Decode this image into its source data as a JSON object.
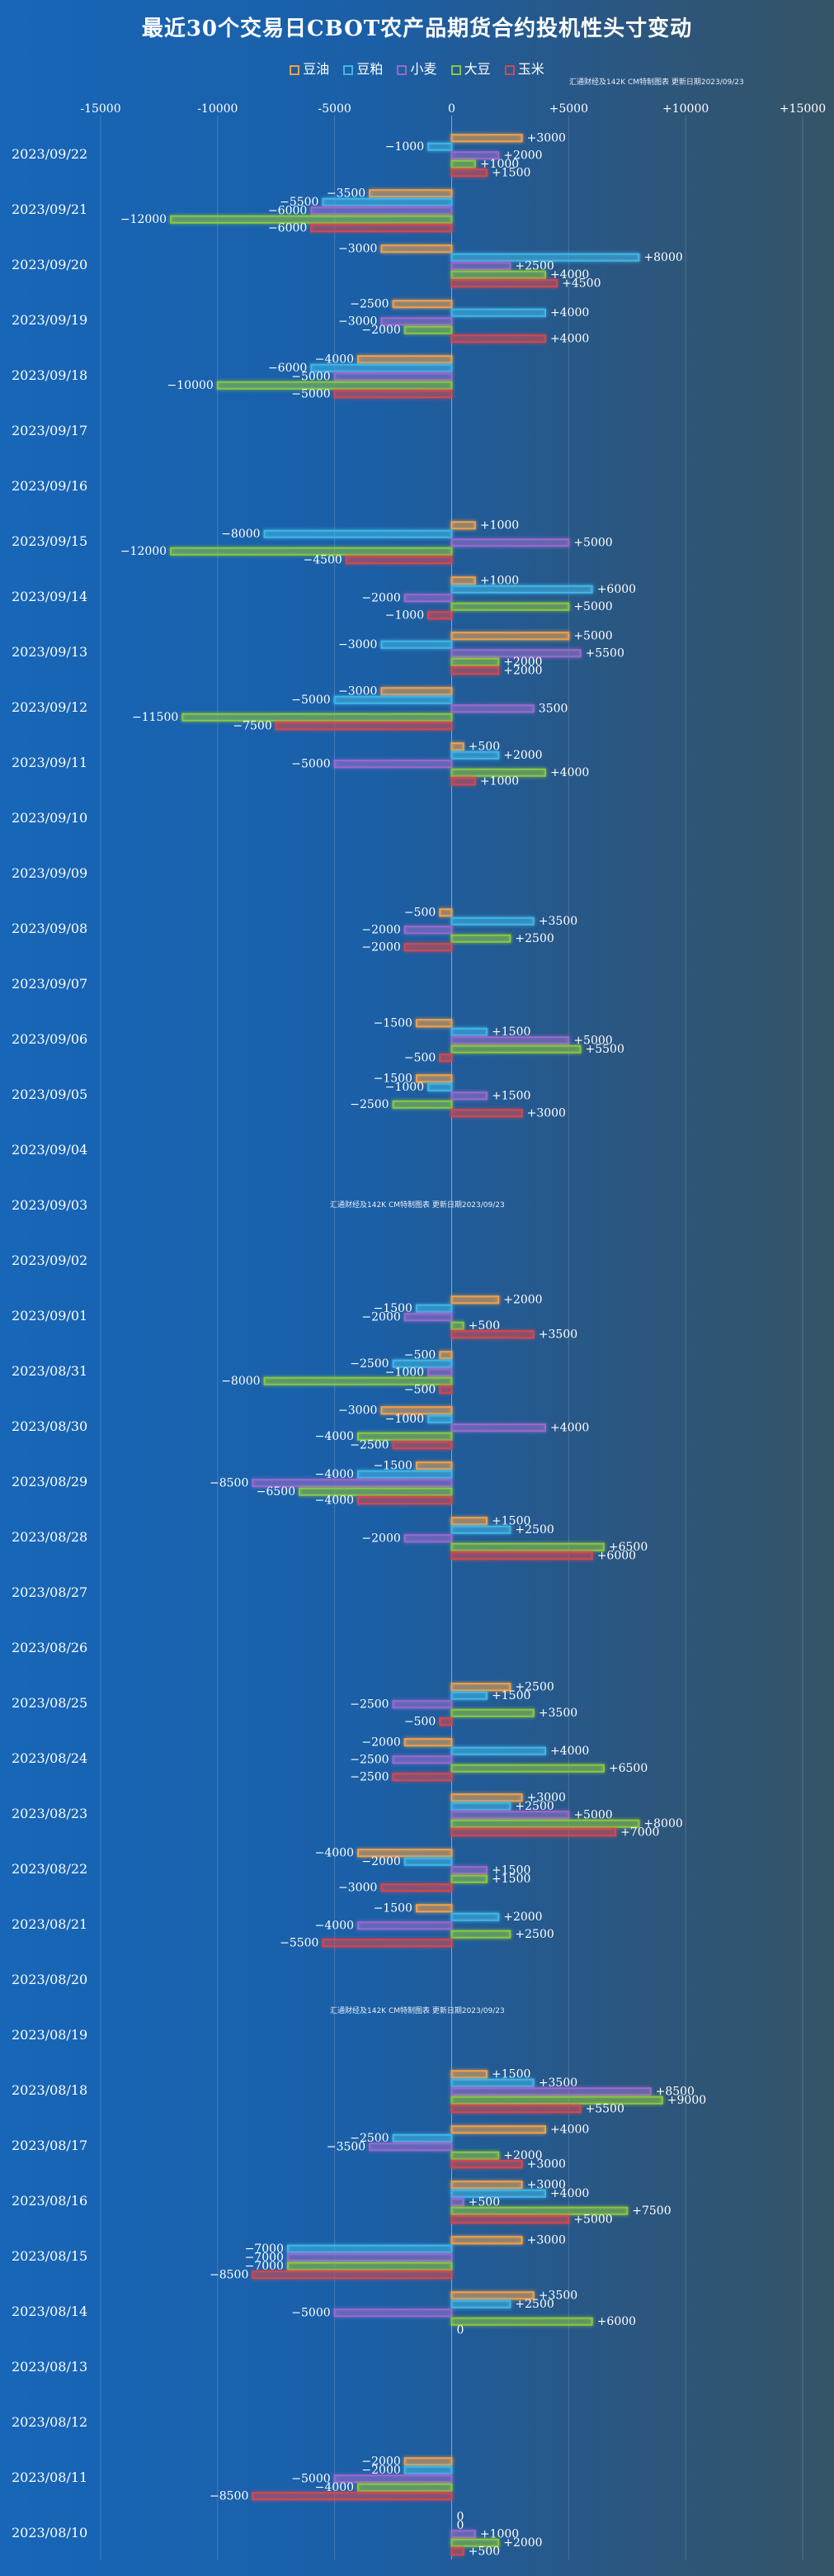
{
  "chart_data": {
    "type": "bar",
    "orientation": "horizontal",
    "title": "最近30个交易日CBOT农产品期货合约投机性头寸变动",
    "source_note": "汇通财经及142K CM特制图表 更新日期2023/09/23",
    "xlim": [
      -15000,
      15000
    ],
    "xticks": [
      "-15000",
      "-10000",
      "-5000",
      "0",
      "+5000",
      "+10000",
      "+15000"
    ],
    "xtick_values": [
      -15000,
      -10000,
      -5000,
      0,
      5000,
      10000,
      15000
    ],
    "categories": [
      "2023/09/22",
      "2023/09/21",
      "2023/09/20",
      "2023/09/19",
      "2023/09/18",
      "2023/09/17",
      "2023/09/16",
      "2023/09/15",
      "2023/09/14",
      "2023/09/13",
      "2023/09/12",
      "2023/09/11",
      "2023/09/10",
      "2023/09/09",
      "2023/09/08",
      "2023/09/07",
      "2023/09/06",
      "2023/09/05",
      "2023/09/04",
      "2023/09/03",
      "2023/09/02",
      "2023/09/01",
      "2023/08/31",
      "2023/08/30",
      "2023/08/29",
      "2023/08/28",
      "2023/08/27",
      "2023/08/26",
      "2023/08/25",
      "2023/08/24",
      "2023/08/23",
      "2023/08/22",
      "2023/08/21",
      "2023/08/20",
      "2023/08/19",
      "2023/08/18",
      "2023/08/17",
      "2023/08/16",
      "2023/08/15",
      "2023/08/14",
      "2023/08/13",
      "2023/08/12",
      "2023/08/11",
      "2023/08/10"
    ],
    "series": [
      {
        "name": "豆油",
        "color": "#f0a04b",
        "values": [
          3000,
          -3500,
          -3000,
          -2500,
          -4000,
          null,
          null,
          1000,
          1000,
          5000,
          -3000,
          500,
          null,
          null,
          -500,
          null,
          -1500,
          -1500,
          null,
          null,
          null,
          2000,
          -500,
          -3000,
          -1500,
          1500,
          null,
          null,
          2500,
          -2000,
          3000,
          -4000,
          -1500,
          null,
          null,
          1500,
          4000,
          3000,
          3000,
          3500,
          null,
          null,
          -2000,
          0
        ],
        "labels": [
          "+3000",
          "−3500",
          "−3000",
          "−2500",
          "−4000",
          null,
          null,
          "+1000",
          "+1000",
          "+5000",
          "−3000",
          "+500",
          null,
          null,
          "−500",
          null,
          "−1500",
          "−1500",
          null,
          null,
          null,
          "+2000",
          "−500",
          "−3000",
          "−1500",
          "+1500",
          null,
          null,
          "+2500",
          "−2000",
          "+3000",
          "−4000",
          "−1500",
          null,
          null,
          "+1500",
          "+4000",
          "+3000",
          "+3000",
          "+3500",
          null,
          null,
          "−2000",
          "0"
        ]
      },
      {
        "name": "豆粕",
        "color": "#3fb6e6",
        "values": [
          -1000,
          -5500,
          8000,
          4000,
          -6000,
          null,
          null,
          -8000,
          6000,
          -3000,
          -5000,
          2000,
          null,
          null,
          3500,
          null,
          1500,
          -1000,
          null,
          null,
          null,
          -1500,
          -2500,
          -1000,
          -4000,
          2500,
          null,
          null,
          1500,
          4000,
          2500,
          -2000,
          2000,
          null,
          null,
          3500,
          -2500,
          4000,
          -7000,
          2500,
          null,
          null,
          -2000,
          0
        ],
        "labels": [
          "−1000",
          "−5500",
          "+8000",
          "+4000",
          "−6000",
          null,
          null,
          "−8000",
          "+6000",
          "−3000",
          "−5000",
          "+2000",
          null,
          null,
          "+3500",
          null,
          "+1500",
          "−1000",
          null,
          null,
          null,
          "−1500",
          "−2500",
          "−1000",
          "−4000",
          "+2500",
          null,
          null,
          "+1500",
          "+4000",
          "+2500",
          "−2000",
          "+2000",
          null,
          null,
          "+3500",
          "−2500",
          "+4000",
          "−7000",
          "+2500",
          null,
          null,
          "−2000",
          "0"
        ]
      },
      {
        "name": "小麦",
        "color": "#9a6acb",
        "values": [
          2000,
          -6000,
          2500,
          -3000,
          -5000,
          null,
          null,
          5000,
          -2000,
          5500,
          3500,
          -5000,
          null,
          null,
          -2000,
          null,
          5000,
          1500,
          null,
          null,
          null,
          -2000,
          -1000,
          4000,
          -8500,
          -2000,
          null,
          null,
          -2500,
          -2500,
          5000,
          1500,
          -4000,
          null,
          null,
          8500,
          -3500,
          500,
          -7000,
          -5000,
          null,
          null,
          -5000,
          1000
        ],
        "labels": [
          "+2000",
          "−6000",
          "+2500",
          "−3000",
          "−5000",
          null,
          null,
          "+5000",
          "−2000",
          "+5500",
          "3500",
          "−5000",
          null,
          null,
          "−2000",
          null,
          "+5000",
          "+1500",
          null,
          null,
          null,
          "−2000",
          "−1000",
          "+4000",
          "−8500",
          "−2000",
          null,
          null,
          "−2500",
          "−2500",
          "+5000",
          "+1500",
          "−4000",
          null,
          null,
          "+8500",
          "−3500",
          "+500",
          "−7000",
          "−5000",
          null,
          null,
          "−5000",
          "+1000"
        ]
      },
      {
        "name": "大豆",
        "color": "#8cc63f",
        "values": [
          1000,
          -12000,
          4000,
          -2000,
          -10000,
          null,
          null,
          -12000,
          5000,
          2000,
          -11500,
          4000,
          null,
          null,
          2500,
          null,
          5500,
          -2500,
          null,
          null,
          null,
          500,
          -8000,
          -4000,
          -6500,
          6500,
          null,
          null,
          3500,
          6500,
          8000,
          1500,
          2500,
          null,
          null,
          9000,
          2000,
          7500,
          -7000,
          6000,
          null,
          null,
          -4000,
          2000
        ],
        "labels": [
          "+1000",
          "−12000",
          "+4000",
          "−2000",
          "−10000",
          null,
          null,
          "−12000",
          "+5000",
          "+2000",
          "−11500",
          "+4000",
          null,
          null,
          "+2500",
          null,
          "+5500",
          "−2500",
          null,
          null,
          null,
          "+500",
          "−8000",
          "−4000",
          "−6500",
          "+6500",
          null,
          null,
          "+3500",
          "+6500",
          "+8000",
          "+1500",
          "+2500",
          null,
          null,
          "+9000",
          "+2000",
          "+7500",
          "−7000",
          "+6000",
          null,
          null,
          "−4000",
          "+2000"
        ]
      },
      {
        "name": "玉米",
        "color": "#d5474f",
        "values": [
          1500,
          -6000,
          4500,
          4000,
          -5000,
          null,
          null,
          -4500,
          -1000,
          2000,
          -7500,
          1000,
          null,
          null,
          -2000,
          null,
          -500,
          3000,
          null,
          null,
          null,
          3500,
          -500,
          -2500,
          -4000,
          6000,
          null,
          null,
          -500,
          -2500,
          7000,
          -3000,
          -5500,
          null,
          null,
          5500,
          3000,
          5000,
          -8500,
          0,
          null,
          null,
          -8500,
          500
        ],
        "labels": [
          "+1500",
          "−6000",
          "+4500",
          "+4000",
          "−5000",
          null,
          null,
          "−4500",
          "−1000",
          "+2000",
          "−7500",
          "+1000",
          null,
          null,
          "−2000",
          null,
          "−500",
          "+3000",
          null,
          null,
          null,
          "+3500",
          "−500",
          "−2500",
          "−4000",
          "+6000",
          null,
          null,
          "−500",
          "−2500",
          "+7000",
          "−3000",
          "−5500",
          null,
          null,
          "+5500",
          "+3000",
          "+5000",
          "−8500",
          "0",
          null,
          null,
          "−8500",
          "+500"
        ]
      }
    ]
  }
}
